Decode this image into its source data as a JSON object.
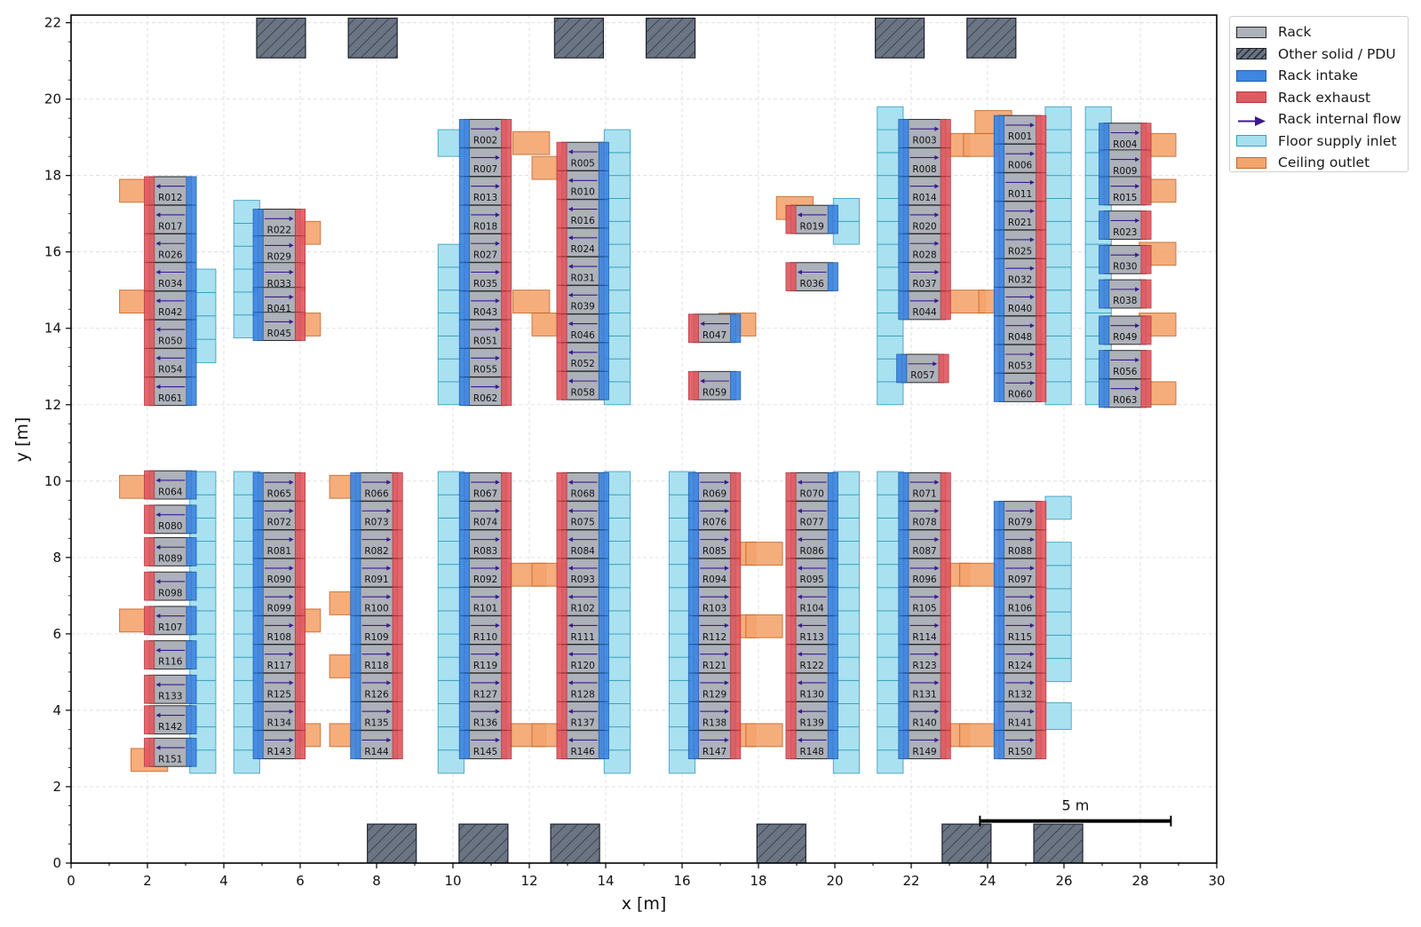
{
  "axes": {
    "xlabel": "x [m]",
    "ylabel": "y [m]",
    "xlim": [
      0,
      30
    ],
    "ylim": [
      0,
      22.2
    ],
    "xticks": [
      0,
      2,
      4,
      6,
      8,
      10,
      12,
      14,
      16,
      18,
      20,
      22,
      24,
      26,
      28,
      30
    ],
    "yticks": [
      0,
      2,
      4,
      6,
      8,
      10,
      12,
      14,
      16,
      18,
      20,
      22
    ],
    "grid": true
  },
  "legend": {
    "placement": "outside-upper-right",
    "items": [
      {
        "label": "Rack",
        "kind": "rack"
      },
      {
        "label": "Other solid / PDU",
        "kind": "solid"
      },
      {
        "label": "Rack intake",
        "kind": "intake"
      },
      {
        "label": "Rack exhaust",
        "kind": "exhaust"
      },
      {
        "label": "Rack internal flow",
        "kind": "arrow"
      },
      {
        "label": "Floor supply inlet",
        "kind": "floor"
      },
      {
        "label": "Ceiling outlet",
        "kind": "ceiling"
      }
    ]
  },
  "scale_bar": {
    "label": "5 m",
    "x0": 23.8,
    "x1": 28.8,
    "y": 1.1
  },
  "colors": {
    "rack": "#adb1b9",
    "solid": "#6b7483",
    "intake": "#3f86e0",
    "exhaust": "#e15a61",
    "arrow": "#3b1a8f",
    "floor": "#a5e0f0",
    "ceiling": "#f4a56e"
  },
  "chart_data": {
    "type": "layout",
    "units": "m",
    "other_solids": [
      [
        5.5,
        21.6
      ],
      [
        7.9,
        21.6
      ],
      [
        13.3,
        21.6
      ],
      [
        15.7,
        21.6
      ],
      [
        21.7,
        21.6
      ],
      [
        24.1,
        21.6
      ],
      [
        8.4,
        0.5
      ],
      [
        10.8,
        0.5
      ],
      [
        13.2,
        0.5
      ],
      [
        18.6,
        0.5
      ],
      [
        23.45,
        0.5
      ],
      [
        25.85,
        0.5
      ]
    ],
    "rack_rows": [
      {
        "x": 2.6,
        "dir": "left",
        "ids": [
          "R012",
          "R017",
          "R026",
          "R034",
          "R042",
          "R050",
          "R054",
          "R061"
        ],
        "y": [
          17.6,
          16.85,
          16.1,
          15.35,
          14.6,
          13.85,
          13.1,
          12.35
        ]
      },
      {
        "x": 5.45,
        "dir": "right",
        "ids": [
          "R022",
          "R029",
          "R033",
          "R041",
          "R045"
        ],
        "y": [
          16.75,
          16.05,
          15.35,
          14.7,
          14.05
        ]
      },
      {
        "x": 10.85,
        "dir": "right",
        "ids": [
          "R002",
          "R007",
          "R013",
          "R018",
          "R027",
          "R035",
          "R043",
          "R051",
          "R055",
          "R062"
        ],
        "y": [
          19.1,
          18.35,
          17.6,
          16.85,
          16.1,
          15.35,
          14.6,
          13.85,
          13.1,
          12.35
        ]
      },
      {
        "x": 13.4,
        "dir": "left",
        "ids": [
          "R005",
          "R010",
          "R016",
          "R024",
          "R031",
          "R039",
          "R046",
          "R052",
          "R058"
        ],
        "y": [
          18.5,
          17.75,
          17.0,
          16.25,
          15.5,
          14.75,
          14.0,
          13.25,
          12.5
        ]
      },
      {
        "x": 16.85,
        "dir": "left",
        "ids": [
          "R047"
        ],
        "y": [
          14.0
        ]
      },
      {
        "x": 16.85,
        "dir": "left",
        "ids": [
          "R059"
        ],
        "y": [
          12.5
        ]
      },
      {
        "x": 19.4,
        "dir": "left",
        "ids": [
          "R019"
        ],
        "y": [
          16.85
        ]
      },
      {
        "x": 19.4,
        "dir": "left",
        "ids": [
          "R036"
        ],
        "y": [
          15.35
        ]
      },
      {
        "x": 22.35,
        "dir": "right",
        "ids": [
          "R003",
          "R008",
          "R014",
          "R020",
          "R028",
          "R037",
          "R044"
        ],
        "y": [
          19.1,
          18.35,
          17.6,
          16.85,
          16.1,
          15.35,
          14.6
        ]
      },
      {
        "x": 22.3,
        "dir": "right",
        "ids": [
          "R057"
        ],
        "y": [
          12.95
        ]
      },
      {
        "x": 24.85,
        "dir": "right",
        "ids": [
          "R001",
          "R006",
          "R011"
        ],
        "y": [
          19.2,
          18.45,
          17.7
        ]
      },
      {
        "x": 24.85,
        "dir": "right",
        "ids": [
          "R021",
          "R025",
          "R032",
          "R040",
          "R048",
          "R053",
          "R060"
        ],
        "y": [
          16.95,
          16.2,
          15.45,
          14.7,
          13.95,
          13.2,
          12.45
        ]
      },
      {
        "x": 27.6,
        "dir": "right",
        "ids": [
          "R004",
          "R009",
          "R015",
          "R023",
          "R030",
          "R038",
          "R049",
          "R056",
          "R063"
        ],
        "y": [
          19.0,
          18.3,
          17.6,
          16.7,
          15.8,
          14.9,
          13.95,
          13.05,
          12.3
        ]
      },
      {
        "x": 2.6,
        "dir": "left",
        "ids": [
          "R064",
          "R080",
          "R089",
          "R098",
          "R107",
          "R116",
          "R133",
          "R142",
          "R151"
        ],
        "y": [
          9.9,
          9.0,
          8.15,
          7.25,
          6.35,
          5.45,
          4.55,
          3.75,
          2.9
        ]
      },
      {
        "x": 5.45,
        "dir": "right",
        "ids": [
          "R065",
          "R072",
          "R081",
          "R090",
          "R099",
          "R108",
          "R117",
          "R125",
          "R134",
          "R143"
        ],
        "y": [
          9.85,
          9.1,
          8.35,
          7.6,
          6.85,
          6.1,
          5.35,
          4.6,
          3.85,
          3.1
        ]
      },
      {
        "x": 8.0,
        "dir": "right",
        "ids": [
          "R066",
          "R073",
          "R082",
          "R091",
          "R100",
          "R109",
          "R118",
          "R126",
          "R135",
          "R144"
        ],
        "y": [
          9.85,
          9.1,
          8.35,
          7.6,
          6.85,
          6.1,
          5.35,
          4.6,
          3.85,
          3.1
        ]
      },
      {
        "x": 10.85,
        "dir": "right",
        "ids": [
          "R067",
          "R074",
          "R083",
          "R092",
          "R101",
          "R110",
          "R119",
          "R127",
          "R136",
          "R145"
        ],
        "y": [
          9.85,
          9.1,
          8.35,
          7.6,
          6.85,
          6.1,
          5.35,
          4.6,
          3.85,
          3.1
        ]
      },
      {
        "x": 13.4,
        "dir": "left",
        "ids": [
          "R068",
          "R075",
          "R084",
          "R093",
          "R102",
          "R111",
          "R120",
          "R128",
          "R137",
          "R146"
        ],
        "y": [
          9.85,
          9.1,
          8.35,
          7.6,
          6.85,
          6.1,
          5.35,
          4.6,
          3.85,
          3.1
        ]
      },
      {
        "x": 16.85,
        "dir": "right",
        "ids": [
          "R069",
          "R076",
          "R085",
          "R094",
          "R103",
          "R112",
          "R121",
          "R129",
          "R138",
          "R147"
        ],
        "y": [
          9.85,
          9.1,
          8.35,
          7.6,
          6.85,
          6.1,
          5.35,
          4.6,
          3.85,
          3.1
        ]
      },
      {
        "x": 19.4,
        "dir": "left",
        "ids": [
          "R070",
          "R077",
          "R086",
          "R095",
          "R104",
          "R113",
          "R122",
          "R130",
          "R139",
          "R148"
        ],
        "y": [
          9.85,
          9.1,
          8.35,
          7.6,
          6.85,
          6.1,
          5.35,
          4.6,
          3.85,
          3.1
        ]
      },
      {
        "x": 22.35,
        "dir": "right",
        "ids": [
          "R071",
          "R078",
          "R087",
          "R096",
          "R105",
          "R114",
          "R123",
          "R131",
          "R140",
          "R149"
        ],
        "y": [
          9.85,
          9.1,
          8.35,
          7.6,
          6.85,
          6.1,
          5.35,
          4.6,
          3.85,
          3.1
        ]
      },
      {
        "x": 24.85,
        "dir": "right",
        "ids": [
          "R079",
          "R088",
          "R097",
          "R106",
          "R115",
          "R124",
          "R132",
          "R141",
          "R150"
        ],
        "y": [
          9.1,
          8.35,
          7.6,
          6.85,
          6.1,
          5.35,
          4.6,
          3.85,
          3.1
        ]
      }
    ],
    "floor_inlet_strips": [
      [
        3.45,
        2.35,
        10.25
      ],
      [
        4.6,
        2.35,
        10.25
      ],
      [
        9.95,
        2.35,
        10.25
      ],
      [
        14.3,
        2.35,
        10.25
      ],
      [
        16.0,
        2.35,
        10.25
      ],
      [
        20.3,
        2.35,
        10.25
      ],
      [
        21.45,
        2.35,
        10.25
      ],
      [
        4.6,
        13.75,
        17.35
      ],
      [
        3.45,
        13.1,
        15.55
      ],
      [
        9.95,
        12.0,
        16.2
      ],
      [
        9.95,
        18.5,
        19.2
      ],
      [
        14.3,
        12.0,
        19.2
      ],
      [
        21.45,
        12.0,
        19.8
      ],
      [
        25.85,
        12.0,
        19.8
      ],
      [
        26.9,
        12.0,
        19.8
      ],
      [
        25.85,
        9.0,
        9.6
      ],
      [
        25.85,
        4.75,
        8.4
      ],
      [
        25.85,
        3.5,
        4.2
      ],
      [
        20.3,
        16.2,
        17.4
      ]
    ],
    "ceiling_outlets": [
      [
        1.75,
        17.6
      ],
      [
        1.75,
        14.7
      ],
      [
        6.05,
        16.5
      ],
      [
        6.05,
        14.1
      ],
      [
        12.05,
        18.85
      ],
      [
        12.05,
        14.7
      ],
      [
        12.55,
        18.2
      ],
      [
        12.55,
        14.1
      ],
      [
        18.95,
        17.15
      ],
      [
        17.45,
        14.1
      ],
      [
        23.05,
        18.8
      ],
      [
        23.85,
        18.8
      ],
      [
        24.15,
        19.4
      ],
      [
        23.45,
        14.7
      ],
      [
        24.25,
        14.7
      ],
      [
        28.45,
        18.8
      ],
      [
        28.45,
        17.6
      ],
      [
        28.45,
        15.95
      ],
      [
        28.45,
        14.1
      ],
      [
        28.45,
        12.3
      ],
      [
        1.75,
        9.85
      ],
      [
        1.75,
        6.35
      ],
      [
        6.05,
        6.35
      ],
      [
        6.05,
        3.35
      ],
      [
        7.25,
        9.85
      ],
      [
        7.25,
        6.8
      ],
      [
        7.25,
        5.15
      ],
      [
        7.25,
        3.35
      ],
      [
        11.95,
        7.55
      ],
      [
        12.55,
        7.55
      ],
      [
        11.95,
        3.35
      ],
      [
        12.55,
        3.35
      ],
      [
        17.45,
        8.1
      ],
      [
        18.15,
        8.1
      ],
      [
        17.45,
        6.2
      ],
      [
        18.15,
        6.2
      ],
      [
        17.45,
        3.35
      ],
      [
        18.15,
        3.35
      ],
      [
        23.05,
        7.55
      ],
      [
        23.75,
        7.55
      ],
      [
        23.05,
        3.35
      ],
      [
        23.75,
        3.35
      ],
      [
        2.05,
        2.7
      ]
    ]
  }
}
